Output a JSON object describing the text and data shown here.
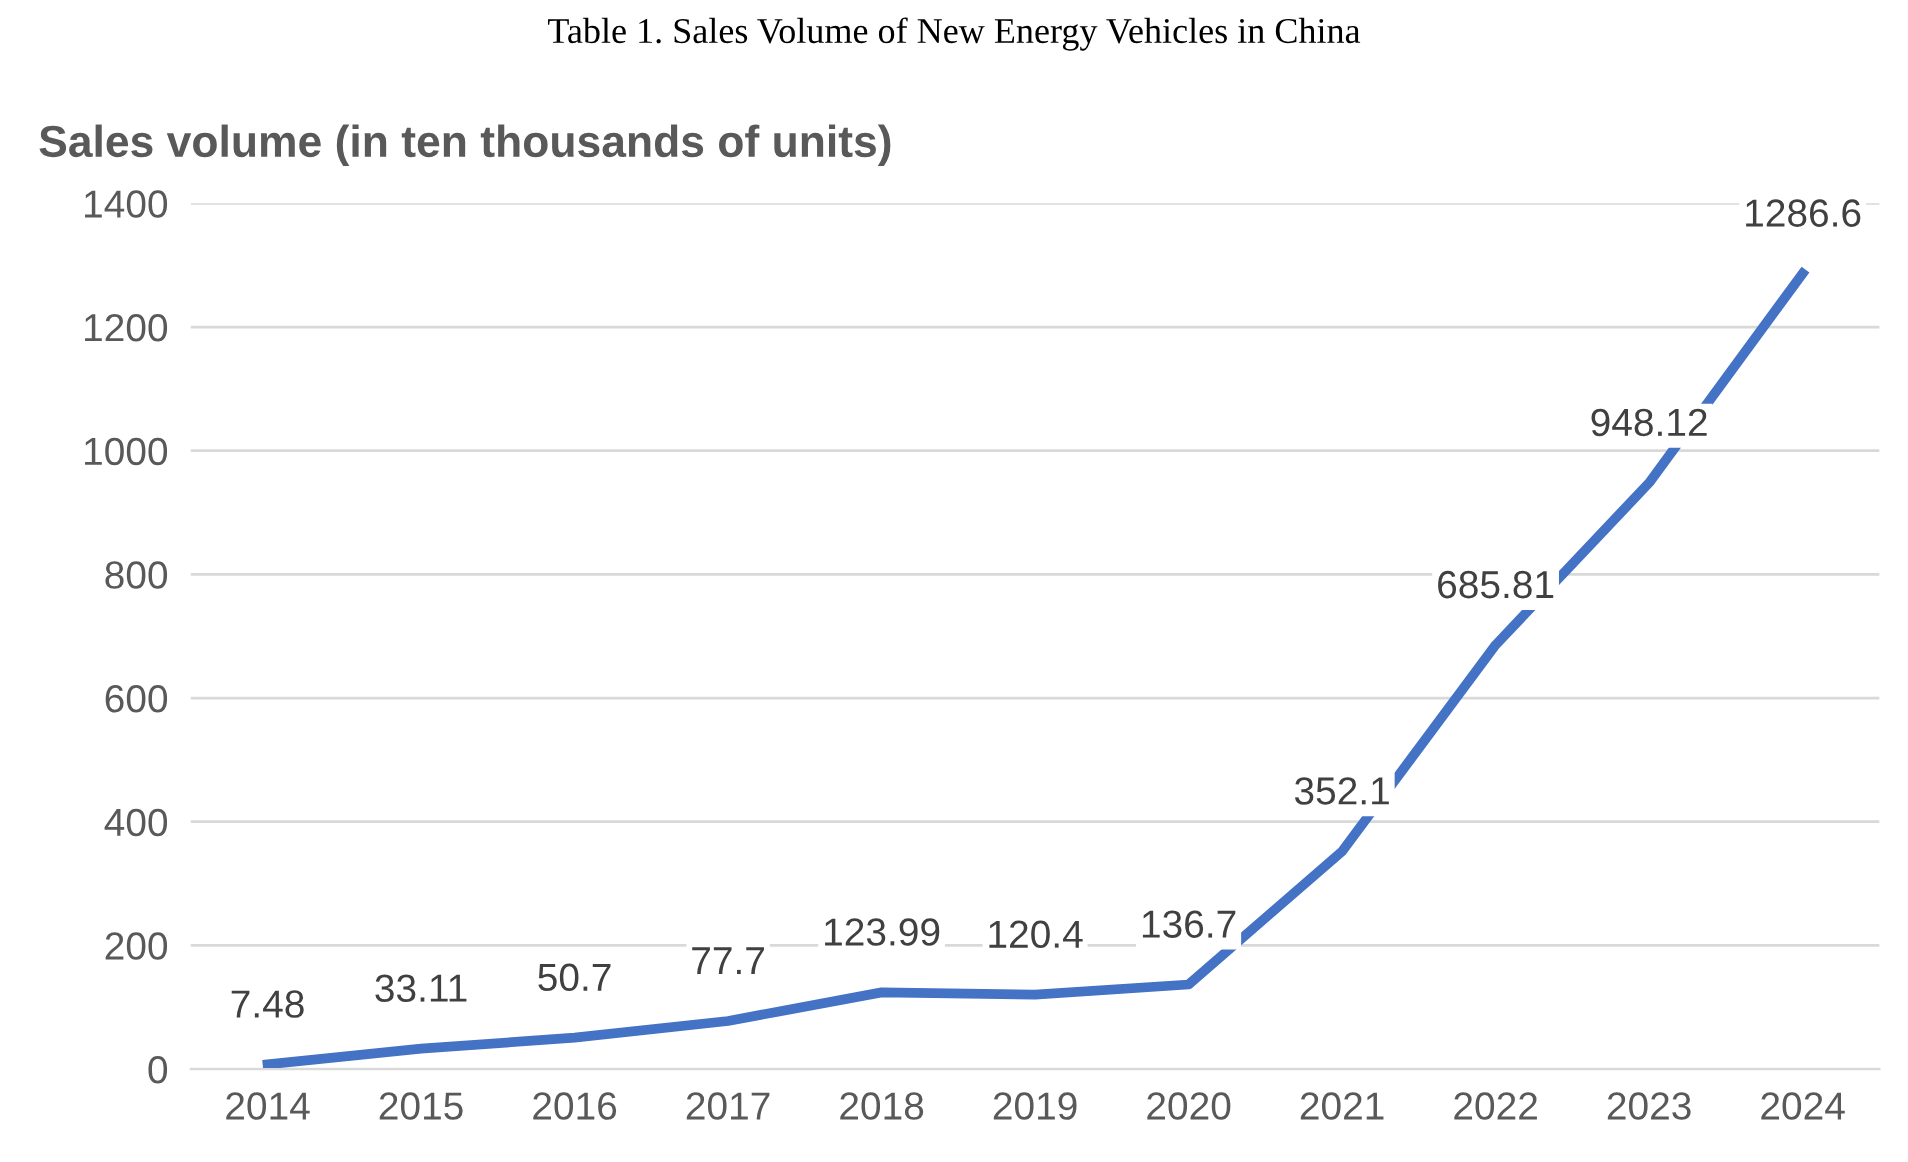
{
  "chart_data": {
    "type": "line",
    "title": "Table 1. Sales Volume of New Energy Vehicles in China",
    "subtitle": "Sales volume (in ten thousands of units)",
    "categories": [
      "2014",
      "2015",
      "2016",
      "2017",
      "2018",
      "2019",
      "2020",
      "2021",
      "2022",
      "2023",
      "2024"
    ],
    "series": [
      {
        "color": "#4472c4",
        "values": [
          7.48,
          33.11,
          50.7,
          77.7,
          123.99,
          120.4,
          136.7,
          352.1,
          685.81,
          948.12,
          1286.6
        ]
      }
    ],
    "ylim": [
      0,
      1400
    ],
    "yticks": [
      0,
      200,
      400,
      600,
      800,
      1000,
      1200,
      1400
    ],
    "grid": "y",
    "data_labels": true,
    "marker": "none",
    "line_style": "solid"
  }
}
